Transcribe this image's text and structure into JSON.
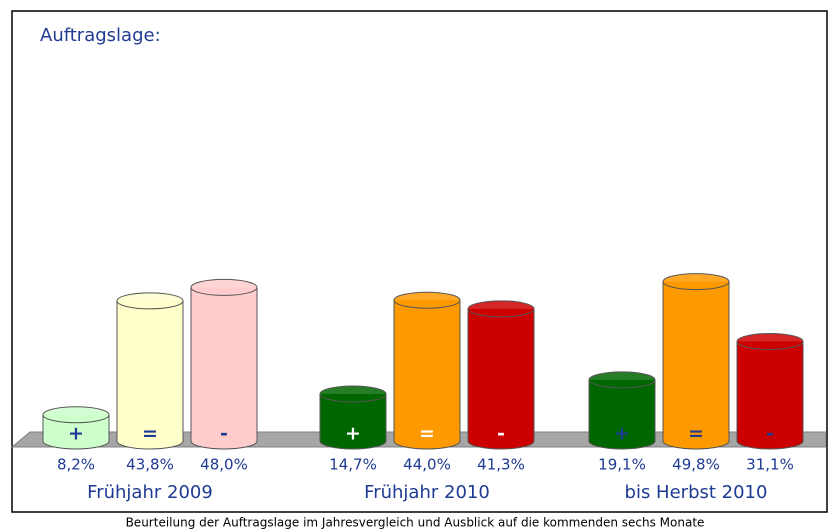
{
  "chart_data": {
    "type": "bar",
    "title": "Auftragslage:",
    "caption": "Beurteilung der Auftragslage im Jahresvergleich und Ausblick auf die kommenden sechs Monate",
    "categories": [
      "Frühjahr 2009",
      "Frühjahr 2010",
      "bis Herbst 2010"
    ],
    "symbol_colors": [
      "#1f3a93",
      "#ffffff",
      "#1f3a93"
    ],
    "series": [
      {
        "name": "+",
        "values": [
          8.2,
          14.7,
          19.1
        ],
        "value_labels": [
          "8,2%",
          "14,7%",
          "19,1%"
        ],
        "colors": [
          "#ccffcc",
          "#006600",
          "#006600"
        ]
      },
      {
        "name": "=",
        "values": [
          43.8,
          44.0,
          49.8
        ],
        "value_labels": [
          "43,8%",
          "44,0%",
          "49,8%"
        ],
        "colors": [
          "#ffffcc",
          "#ff9900",
          "#ff9900"
        ]
      },
      {
        "name": "-",
        "values": [
          48.0,
          41.3,
          31.1
        ],
        "value_labels": [
          "48,0%",
          "41,3%",
          "31,1%"
        ],
        "colors": [
          "#ffcccc",
          "#cc0000",
          "#cc0000"
        ]
      }
    ]
  }
}
